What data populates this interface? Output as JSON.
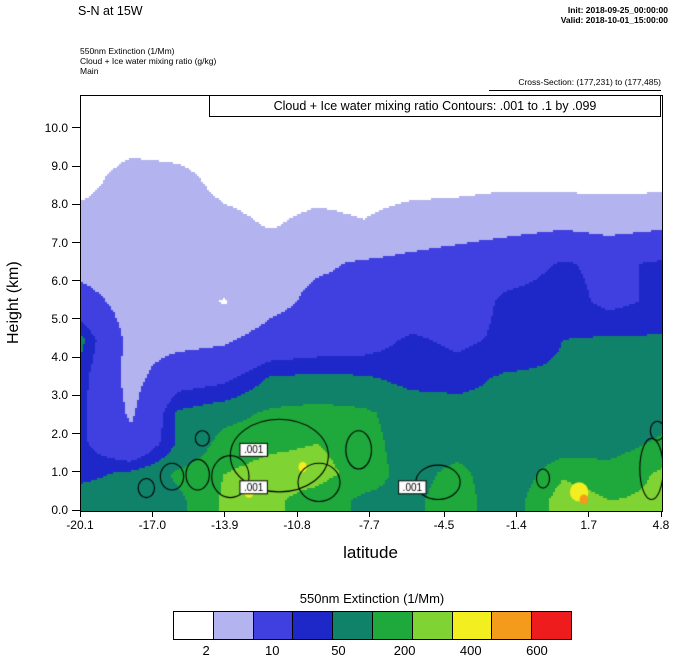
{
  "header": {
    "title": "S-N at 15W",
    "init_line": "Init: 2018-09-25_00:00:00",
    "valid_line": "Valid: 2018-10-01_15:00:00",
    "field_line1": "550nm Extinction  (1/Mm)",
    "field_line2": "Cloud + Ice water mixing ratio  (g/kg)",
    "field_line3": "Main",
    "cross_section": "Cross-Section: (177,231) to (177,485)"
  },
  "plot": {
    "contour_note": "Cloud + Ice water mixing ratio Contours: .001 to .1 by .099",
    "ylabel": "Height (km)",
    "xlabel": "latitude",
    "y_tick_labels": [
      "0.0",
      "1.0",
      "2.0",
      "3.0",
      "4.0",
      "5.0",
      "6.0",
      "7.0",
      "8.0",
      "9.0",
      "10.0"
    ],
    "y_tick_values": [
      0,
      1,
      2,
      3,
      4,
      5,
      6,
      7,
      8,
      9,
      10
    ],
    "x_tick_labels": [
      "-20.1",
      "-17.0",
      "-13.9",
      "-10.8",
      "-7.7",
      "-4.5",
      "-1.4",
      "1.7",
      "4.8"
    ],
    "x_tick_values": [
      -20.1,
      -17.0,
      -13.9,
      -10.8,
      -7.7,
      -4.5,
      -1.4,
      1.7,
      4.8
    ]
  },
  "legend": {
    "title": "550nm Extinction  (1/Mm)",
    "labels": [
      "2",
      "10",
      "50",
      "200",
      "400",
      "600"
    ]
  },
  "chart_data": {
    "type": "heatmap",
    "title": "S-N at 15W",
    "subtitle": "Cloud + Ice water mixing ratio Contours: .001 to .1 by .099",
    "xlabel": "latitude",
    "ylabel": "Height (km)",
    "units": "1/Mm",
    "xlim": [
      -20.1,
      4.8
    ],
    "ylim": [
      0,
      10.86
    ],
    "x": [
      -20.1,
      -18,
      -16,
      -14,
      -12,
      -10,
      -8,
      -6,
      -4,
      -2,
      0.5,
      2.5,
      4.8
    ],
    "y": [
      0.3,
      1.0,
      1.8,
      2.6,
      3.5,
      4.5,
      5.5,
      6.5,
      7.5,
      8.8,
      10.2
    ],
    "values": [
      [
        150,
        150,
        180,
        320,
        320,
        260,
        180,
        180,
        260,
        140,
        380,
        300,
        320
      ],
      [
        80,
        120,
        220,
        300,
        340,
        340,
        260,
        160,
        240,
        130,
        280,
        240,
        320
      ],
      [
        60,
        14,
        110,
        250,
        280,
        300,
        250,
        150,
        150,
        120,
        150,
        160,
        220
      ],
      [
        60,
        8,
        110,
        160,
        220,
        240,
        220,
        150,
        130,
        120,
        130,
        140,
        160
      ],
      [
        70,
        6,
        30,
        40,
        110,
        120,
        110,
        80,
        80,
        110,
        110,
        120,
        130
      ],
      [
        120,
        6,
        6,
        8,
        20,
        25,
        30,
        60,
        40,
        60,
        100,
        110,
        110
      ],
      [
        20,
        5,
        4,
        1.8,
        6,
        15,
        15,
        20,
        25,
        60,
        70,
        40,
        60
      ],
      [
        5,
        4,
        4,
        5,
        6,
        8,
        12,
        15,
        20,
        30,
        55,
        40,
        60
      ],
      [
        4,
        4,
        4,
        3,
        1.8,
        3,
        2.2,
        4,
        5,
        6,
        8,
        6,
        8
      ],
      [
        1,
        4,
        3,
        1.2,
        1,
        1,
        1,
        1,
        1,
        1.2,
        1,
        1,
        1
      ],
      [
        0.5,
        0.5,
        0.5,
        0.5,
        0.5,
        0.5,
        0.5,
        0.5,
        0.5,
        0.5,
        0.5,
        0.5,
        0.5
      ]
    ],
    "thresholds": [
      2,
      10,
      50,
      100,
      200,
      300,
      400,
      500,
      600
    ],
    "palette": [
      "#ffffff",
      "#b3b3ef",
      "#4040e0",
      "#1e28c8",
      "#11826a",
      "#1fa83c",
      "#7fd333",
      "#f2ee20",
      "#f59b1c",
      "#ee1c1c"
    ],
    "legend_boundary_labels": [
      "2",
      "10",
      "50",
      "200",
      "400",
      "600"
    ],
    "spots": [
      {
        "lat": 1.25,
        "h": 0.5,
        "rx": 0.4,
        "ry": 0.25,
        "color": "#f2ee20"
      },
      {
        "lat": 1.45,
        "h": 0.3,
        "rx": 0.18,
        "ry": 0.13,
        "color": "#f59b1c"
      },
      {
        "lat": -12.9,
        "h": 0.5,
        "rx": 0.22,
        "ry": 0.15,
        "color": "#f2ee20"
      },
      {
        "lat": -10.6,
        "h": 1.15,
        "rx": 0.18,
        "ry": 0.14,
        "color": "#f2ee20"
      }
    ],
    "mixing_ratio_contours": {
      "levels_note": ".001 to .1 by .099",
      "level_shown": 0.001,
      "loops": [
        {
          "lat": -11.6,
          "h": 1.45,
          "rx": 2.1,
          "ry": 0.95
        },
        {
          "lat": -13.7,
          "h": 0.9,
          "rx": 0.8,
          "ry": 0.55
        },
        {
          "lat": -15.1,
          "h": 0.95,
          "rx": 0.5,
          "ry": 0.4
        },
        {
          "lat": -16.2,
          "h": 0.9,
          "rx": 0.5,
          "ry": 0.35
        },
        {
          "lat": -9.9,
          "h": 0.75,
          "rx": 0.9,
          "ry": 0.5
        },
        {
          "lat": -8.2,
          "h": 1.6,
          "rx": 0.55,
          "ry": 0.5
        },
        {
          "lat": -4.8,
          "h": 0.75,
          "rx": 0.95,
          "ry": 0.45
        },
        {
          "lat": 4.35,
          "h": 1.1,
          "rx": 0.5,
          "ry": 0.8
        },
        {
          "lat": 4.6,
          "h": 2.1,
          "rx": 0.3,
          "ry": 0.25
        },
        {
          "lat": -0.3,
          "h": 0.85,
          "rx": 0.28,
          "ry": 0.25
        },
        {
          "lat": -17.3,
          "h": 0.6,
          "rx": 0.35,
          "ry": 0.25
        },
        {
          "lat": -14.9,
          "h": 1.9,
          "rx": 0.3,
          "ry": 0.2
        }
      ],
      "labels": [
        {
          "text": ".001",
          "lat": -12.7,
          "h": 1.6
        },
        {
          "text": ".001",
          "lat": -12.7,
          "h": 0.62
        },
        {
          "text": ".001",
          "lat": -5.9,
          "h": 0.62
        }
      ]
    }
  }
}
